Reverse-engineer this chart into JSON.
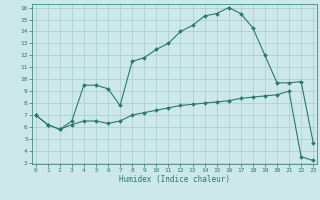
{
  "xlabel": "Humidex (Indice chaleur)",
  "x": [
    0,
    1,
    2,
    3,
    4,
    5,
    6,
    7,
    8,
    9,
    10,
    11,
    12,
    13,
    14,
    15,
    16,
    17,
    18,
    19,
    20,
    21,
    22,
    23
  ],
  "upper_y": [
    7.0,
    6.2,
    5.8,
    6.5,
    9.5,
    9.5,
    9.2,
    7.8,
    11.5,
    11.8,
    12.5,
    13.0,
    14.0,
    14.5,
    15.3,
    15.5,
    16.0,
    15.5,
    14.3,
    12.0,
    9.7,
    9.7,
    9.8,
    4.7
  ],
  "lower_y": [
    7.0,
    6.2,
    5.8,
    6.2,
    6.5,
    6.5,
    6.3,
    6.5,
    7.0,
    7.2,
    7.4,
    7.6,
    7.8,
    7.9,
    8.0,
    8.1,
    8.2,
    8.4,
    8.5,
    8.6,
    8.7,
    9.0,
    3.5,
    3.2
  ],
  "bg_color": "#cce8e8",
  "line_color": "#2a7a6a",
  "grid_color": "#aacccc",
  "ylim_min": 3,
  "ylim_max": 16,
  "xlim_min": 0,
  "xlim_max": 23,
  "yticks": [
    3,
    4,
    5,
    6,
    7,
    8,
    9,
    10,
    11,
    12,
    13,
    14,
    15,
    16
  ],
  "xticks": [
    0,
    1,
    2,
    3,
    4,
    5,
    6,
    7,
    8,
    9,
    10,
    11,
    12,
    13,
    14,
    15,
    16,
    17,
    18,
    19,
    20,
    21,
    22,
    23
  ]
}
